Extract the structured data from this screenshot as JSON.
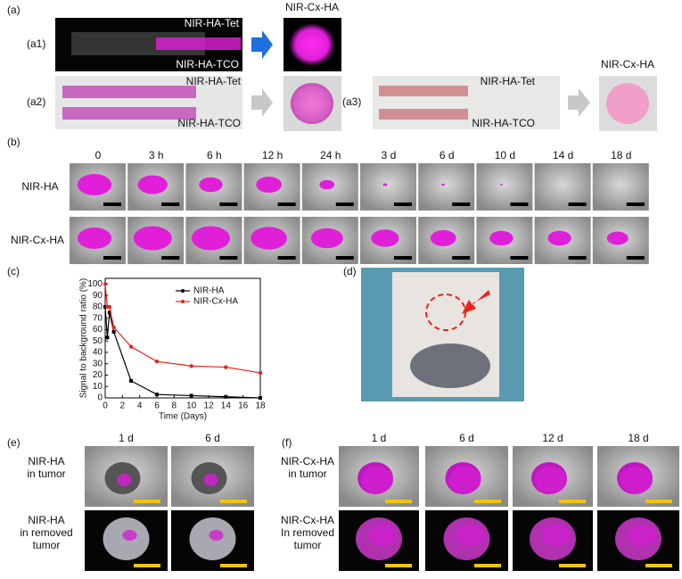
{
  "panels": {
    "a": "(a)",
    "a1": "(a1)",
    "a2": "(a2)",
    "a3": "(a3)",
    "b": "(b)",
    "c": "(c)",
    "d": "(d)",
    "e": "(e)",
    "f": "(f)"
  },
  "a": {
    "a1_top": "NIR-HA-Tet",
    "a1_bottom": "NIR-HA-TCO",
    "a1_result": "NIR-Cx-HA",
    "a2_top": "NIR-HA-Tet",
    "a2_bottom": "NIR-HA-TCO",
    "a3_top": "NIR-HA-Tet",
    "a3_bottom": "NIR-HA-TCO",
    "a3_result": "NIR-Cx-HA"
  },
  "b": {
    "times": [
      "0",
      "3 h",
      "6 h",
      "12 h",
      "24 h",
      "3 d",
      "6 d",
      "10 d",
      "14 d",
      "18 d"
    ],
    "rows": [
      "NIR-HA",
      "NIR-Cx-HA"
    ]
  },
  "chart_data": {
    "type": "line",
    "xlabel": "Time (Days)",
    "ylabel": "Signal to background ratio (%)",
    "x": [
      0,
      0.25,
      0.5,
      1,
      3,
      6,
      10,
      14,
      18
    ],
    "series": [
      {
        "name": "NIR-HA",
        "color": "#000000",
        "values": [
          80,
          53,
          75,
          58,
          15,
          3,
          2,
          1,
          0
        ]
      },
      {
        "name": "NIR-Cx-HA",
        "color": "#e8251f",
        "values": [
          100,
          80,
          80,
          62,
          45,
          32,
          28,
          27,
          22
        ]
      }
    ],
    "xlim": [
      0,
      18
    ],
    "xticks": [
      0,
      2,
      4,
      6,
      8,
      10,
      12,
      14,
      16,
      18
    ],
    "ylim": [
      0,
      105
    ],
    "yticks": [
      0,
      10,
      20,
      30,
      40,
      50,
      60,
      70,
      80,
      90,
      100
    ],
    "legend": "upper right"
  },
  "e": {
    "times": [
      "1 d",
      "6 d"
    ],
    "rows": [
      [
        "NIR-HA",
        "in tumor"
      ],
      [
        "NIR-HA",
        "in removed",
        "tumor"
      ]
    ]
  },
  "f": {
    "times": [
      "1 d",
      "6 d",
      "12 d",
      "18 d"
    ],
    "rows": [
      [
        "NIR-Cx-HA",
        "in tumor"
      ],
      [
        "NIR-Cx-HA",
        "In removed",
        "tumor"
      ]
    ]
  }
}
